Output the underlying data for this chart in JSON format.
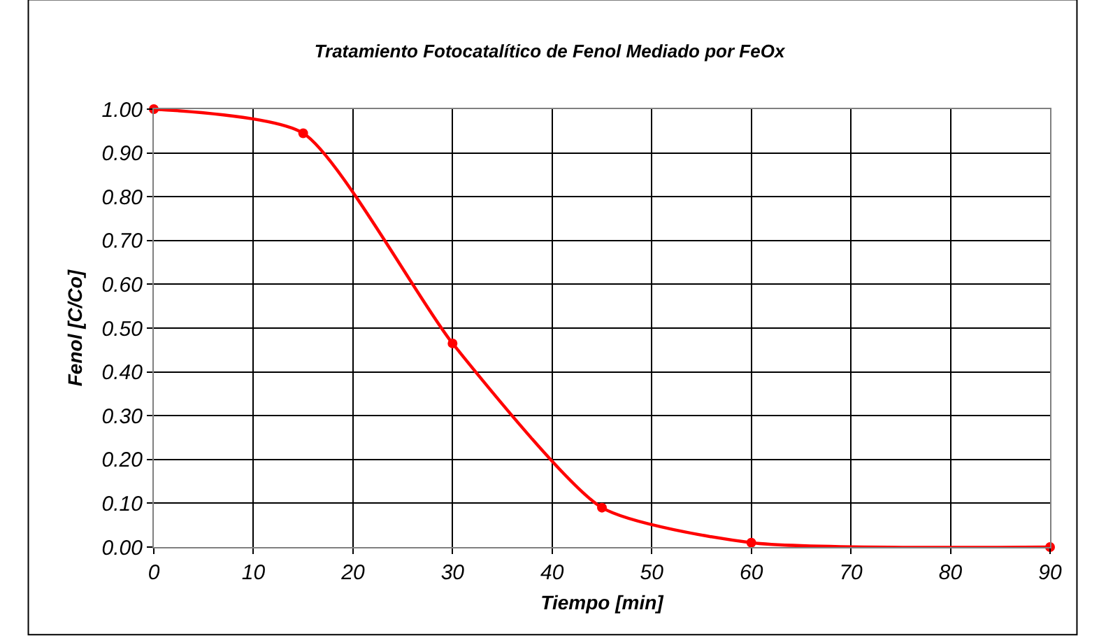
{
  "chart_data": {
    "type": "line",
    "title": "Tratamiento Fotocatalítico de Fenol Mediado por FeOx",
    "xlabel": "Tiempo [min]",
    "ylabel": "Fenol [C/Co]",
    "x": [
      0,
      15,
      30,
      45,
      60,
      90
    ],
    "series": [
      {
        "color": "#ff0000",
        "values": [
          1.0,
          0.945,
          0.465,
          0.09,
          0.01,
          0.0
        ]
      }
    ],
    "xlim": [
      0,
      90
    ],
    "xticks": [
      0,
      10,
      20,
      30,
      40,
      50,
      60,
      70,
      80,
      90
    ],
    "ylim": [
      0,
      1
    ],
    "yticks": [
      {
        "value": 0,
        "label": "0.00"
      },
      {
        "value": 0.1,
        "label": "0.10"
      },
      {
        "value": 0.2,
        "label": "0.20"
      },
      {
        "value": 0.3,
        "label": "0.30"
      },
      {
        "value": 0.4,
        "label": "0.40"
      },
      {
        "value": 0.5,
        "label": "0.50"
      },
      {
        "value": 0.6,
        "label": "0.60"
      },
      {
        "value": 0.7,
        "label": "0.70"
      },
      {
        "value": 0.8,
        "label": "0.80"
      },
      {
        "value": 0.9,
        "label": "0.90"
      },
      {
        "value": 1.0,
        "label": "1.00"
      }
    ],
    "grid": true,
    "marker": "circle",
    "line_style": "solid"
  }
}
